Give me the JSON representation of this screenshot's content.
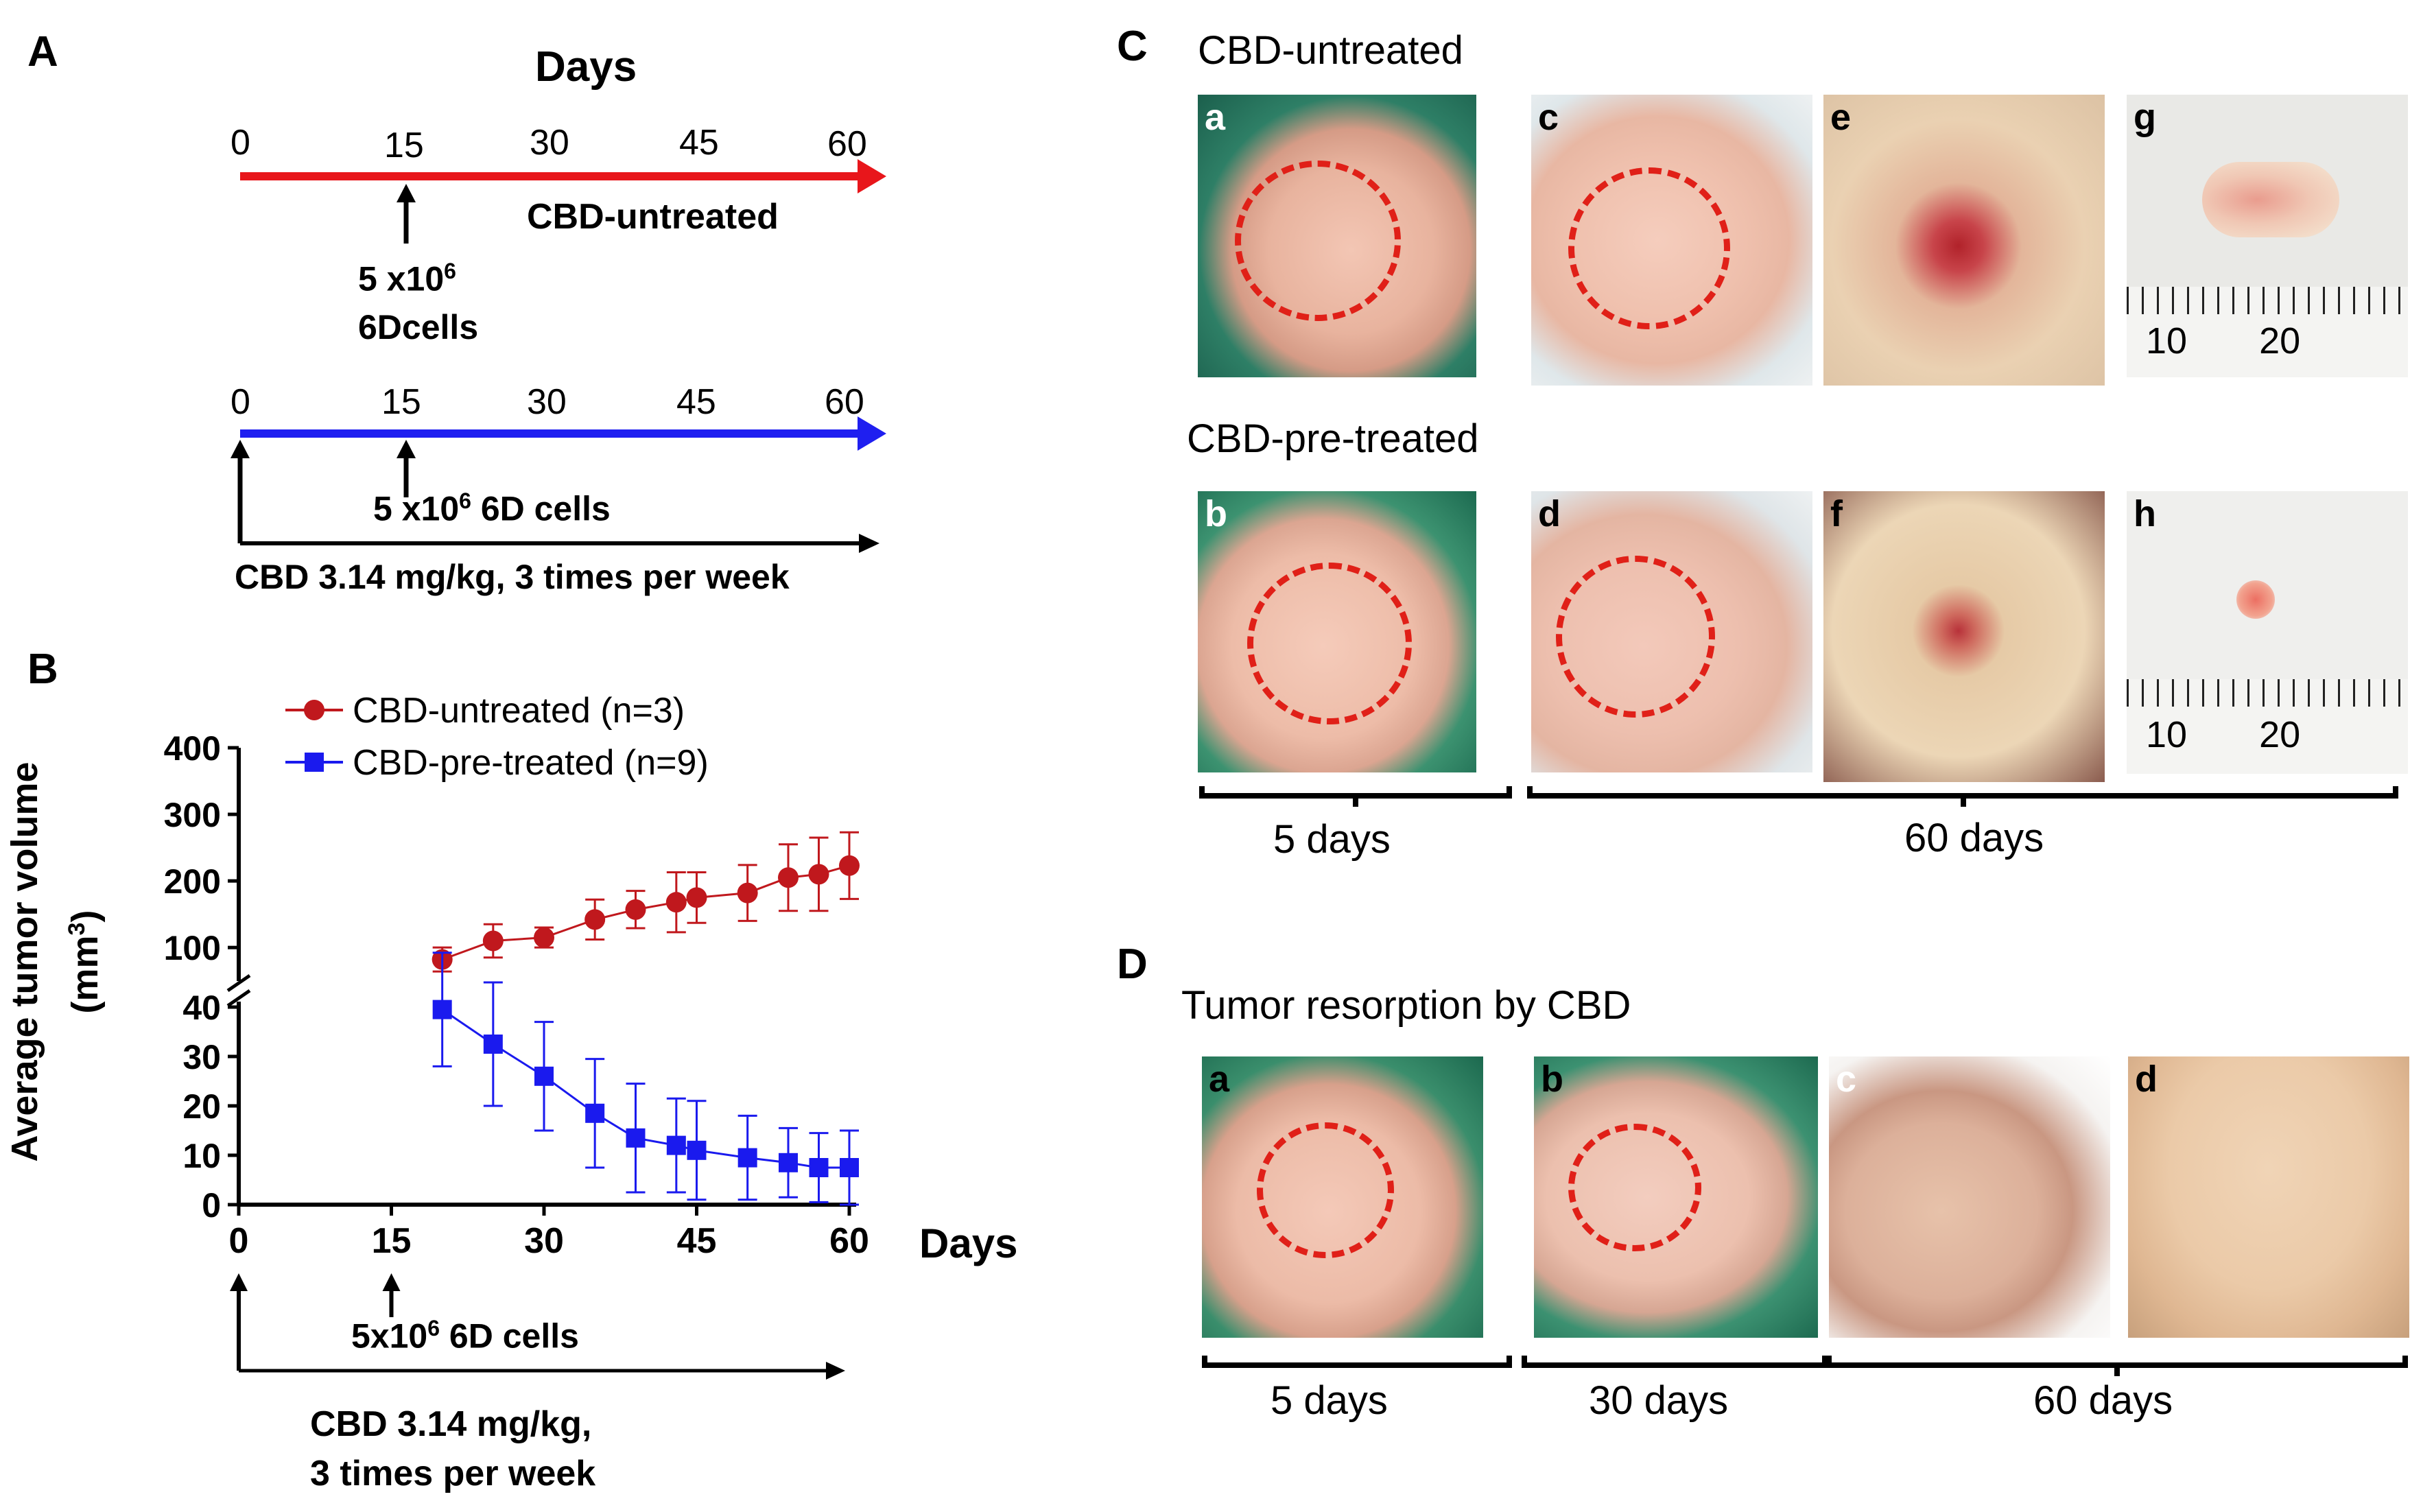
{
  "panel_A": {
    "label": "A",
    "title": "Days",
    "timeline_untreated": {
      "ticks": [
        "0",
        "15",
        "30",
        "45",
        "60"
      ],
      "name": "CBD-untreated",
      "inject_line1": "5 x10",
      "inject_sup": "6",
      "inject_line2": "6Dcells",
      "color": "#e8161b"
    },
    "timeline_pretreated": {
      "ticks": [
        "0",
        "15",
        "30",
        "45",
        "60"
      ],
      "inject_a": "5 x10",
      "inject_sup": "6",
      "inject_b": " 6D cells",
      "treatment": "CBD 3.14 mg/kg, 3 times per week",
      "color": "#1f1ff0"
    }
  },
  "panel_B": {
    "label": "B",
    "ylabel": "Average tumor volume",
    "ylabel_unit_a": "(mm",
    "ylabel_unit_sup": "3",
    "ylabel_unit_b": ")",
    "xlabel": "Days",
    "inject_a": "5x10",
    "inject_sup": "6",
    "inject_b": " 6D cells",
    "treatment_line1": "CBD 3.14 mg/kg,",
    "treatment_line2": "3 times per week"
  },
  "chart_data": {
    "type": "line",
    "title": "",
    "xlabel": "Days",
    "ylabel": "Average tumor volume (mm3)",
    "xlim": [
      0,
      60
    ],
    "x_ticks": [
      "0",
      "15",
      "30",
      "45",
      "60"
    ],
    "y_ticks_lower": [
      "0",
      "10",
      "20",
      "30",
      "40"
    ],
    "y_ticks_upper": [
      "100",
      "200",
      "300",
      "400"
    ],
    "ylim_lower": [
      0,
      40
    ],
    "ylim_upper": [
      60,
      400
    ],
    "axis_break": true,
    "legend_position": "top-left",
    "series": [
      {
        "name": "CBD-untreated (n=3)",
        "color": "#c0181d",
        "marker": "circle",
        "x": [
          20,
          25,
          30,
          35,
          39,
          43,
          45,
          50,
          54,
          57,
          60
        ],
        "y": [
          82,
          110,
          115,
          142,
          157,
          168,
          175,
          182,
          205,
          210,
          223
        ],
        "err": [
          18,
          25,
          15,
          30,
          28,
          45,
          38,
          42,
          50,
          55,
          50
        ]
      },
      {
        "name": "CBD-pre-treated (n=9)",
        "color": "#1a1aee",
        "marker": "square",
        "x": [
          20,
          25,
          30,
          35,
          39,
          43,
          45,
          50,
          54,
          57,
          60
        ],
        "y": [
          39.5,
          32.5,
          26,
          18.5,
          13.5,
          12,
          11,
          9.5,
          8.5,
          7.5,
          7.5
        ],
        "err": [
          11.5,
          12.5,
          11,
          11,
          11,
          9.5,
          10,
          8.5,
          7,
          7,
          7.5
        ]
      }
    ]
  },
  "panel_C": {
    "label": "C",
    "untreated_title": "CBD-untreated",
    "pretreated_title": "CBD-pre-treated",
    "photos_top": [
      "a",
      "c",
      "e",
      "g"
    ],
    "photos_bottom": [
      "b",
      "d",
      "f",
      "h"
    ],
    "ruler_g": "10       20",
    "ruler_h": "10       20",
    "cap_short": "5 days",
    "cap_long": "60 days"
  },
  "panel_D": {
    "label": "D",
    "title": "Tumor resorption by CBD",
    "photos": [
      "a",
      "b",
      "c",
      "d"
    ],
    "cap_1": "5 days",
    "cap_2": "30 days",
    "cap_3": "60 days"
  }
}
